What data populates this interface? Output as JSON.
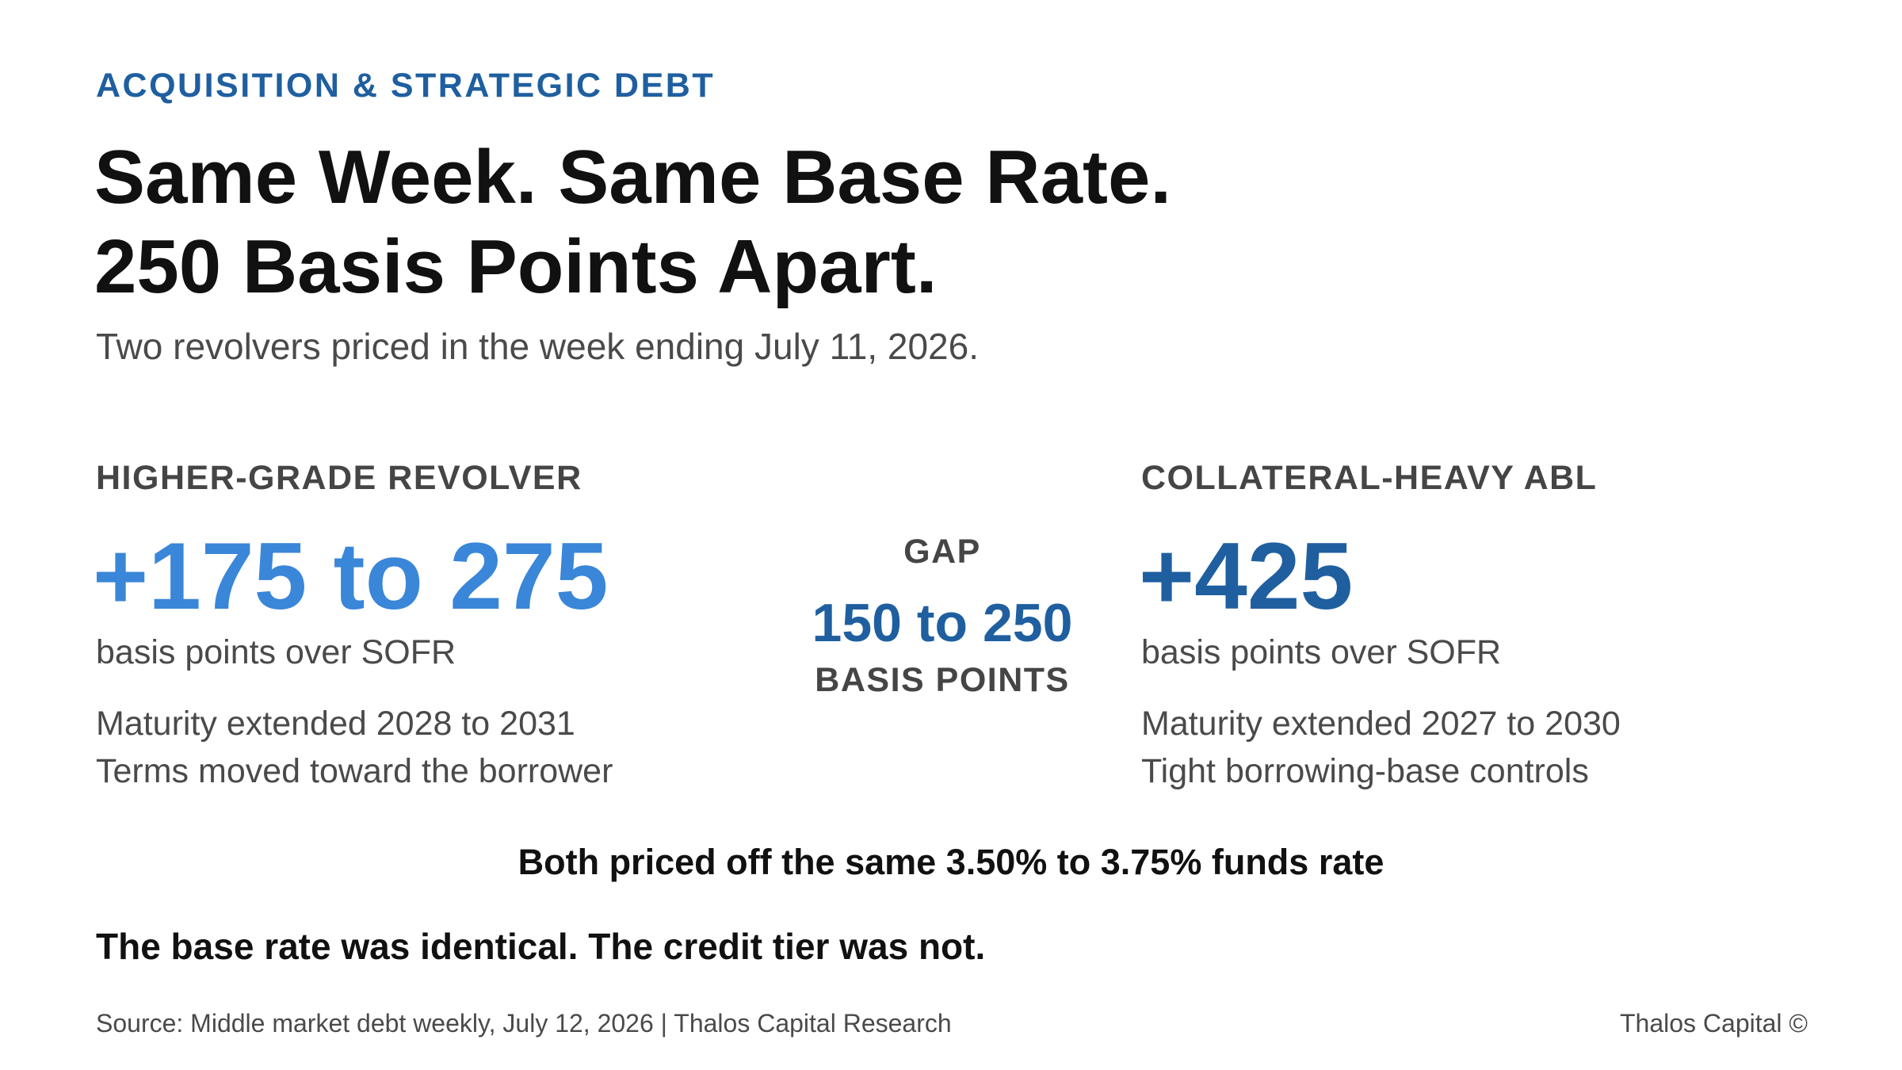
{
  "header": {
    "kicker": "ACQUISITION & STRATEGIC DEBT",
    "title_lines": [
      "Same Week. Same Base Rate.",
      "250 Basis Points Apart."
    ],
    "subtitle": "Two revolvers priced in the week ending July 11, 2026."
  },
  "left": {
    "label": "HIGHER-GRADE REVOLVER",
    "value": "+175 to 275",
    "unit": "basis points over SOFR",
    "details": [
      "Maturity extended 2028 to 2031",
      "Terms moved toward the borrower"
    ]
  },
  "gap": {
    "label": "GAP",
    "value": "150 to 250",
    "unit": "BASIS POINTS"
  },
  "right": {
    "label": "COLLATERAL-HEAVY ABL",
    "value": "+425",
    "unit": "basis points over SOFR",
    "details": [
      "Maturity extended 2027 to 2030",
      "Tight borrowing-base controls"
    ]
  },
  "note": "Both priced off the same 3.50% to 3.75% funds rate",
  "conclusion": "The base rate was identical. The credit tier was not.",
  "footer": {
    "source": "Source: Middle market debt weekly, July 12, 2026 | Thalos Capital Research",
    "credit": "Thalos Capital ©"
  }
}
